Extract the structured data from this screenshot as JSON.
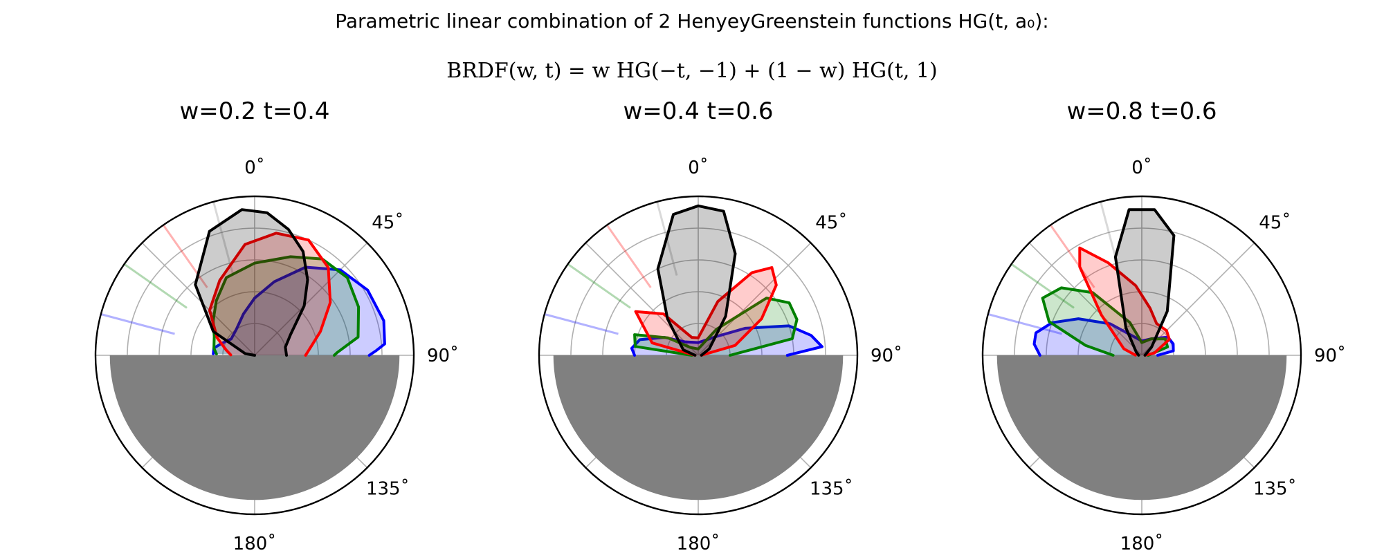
{
  "figure": {
    "title_line1": "Parametric linear combination of 2 HenyeyGreenstein functions HG(t, a₀):",
    "title_line2": "BRDF(w, t) = w HG(−t, −1) + (1 − w) HG(t, 1)"
  },
  "axes_common": {
    "theta_tick_labels": [
      "0˚",
      "45˚",
      "90˚",
      "135˚",
      "180˚"
    ],
    "theta_tick_angles_deg": [
      0,
      45,
      90,
      135,
      180
    ],
    "theta_gridline_angles_deg": [
      0,
      45,
      90,
      135,
      180,
      225,
      270,
      315
    ],
    "radial_rings": 5,
    "ground_color": "#808080",
    "series_colors": [
      "#0000ff",
      "#008000",
      "#ff0000",
      "#000000"
    ]
  },
  "chart_data": [
    {
      "type": "polar",
      "title": "w=0.2   t=0.4",
      "theta_zero": "top",
      "theta_direction": "clockwise",
      "rmax": 5,
      "grid": true,
      "incident_directions": [
        {
          "color": "#0000ff",
          "angle_deg": -75
        },
        {
          "color": "#008000",
          "angle_deg": -55
        },
        {
          "color": "#ff0000",
          "angle_deg": -35
        },
        {
          "color": "#808080",
          "angle_deg": -15
        }
      ],
      "series": [
        {
          "color": "#0000ff",
          "points": [
            [
              -88,
              1.3
            ],
            [
              -80,
              1.3
            ],
            [
              -70,
              1.1
            ],
            [
              -55,
              0.9
            ],
            [
              -35,
              1.0
            ],
            [
              -15,
              1.35
            ],
            [
              0,
              1.8
            ],
            [
              15,
              2.4
            ],
            [
              30,
              3.2
            ],
            [
              45,
              3.8
            ],
            [
              60,
              4.1
            ],
            [
              75,
              4.2
            ],
            [
              85,
              4.1
            ],
            [
              88,
              3.8
            ],
            [
              90,
              3.6
            ]
          ]
        },
        {
          "color": "#008000",
          "points": [
            [
              -88,
              1.2
            ],
            [
              -80,
              1.3
            ],
            [
              -65,
              1.4
            ],
            [
              -50,
              1.7
            ],
            [
              -35,
              2.1
            ],
            [
              -20,
              2.6
            ],
            [
              0,
              2.9
            ],
            [
              20,
              3.3
            ],
            [
              35,
              3.7
            ],
            [
              50,
              3.8
            ],
            [
              65,
              3.6
            ],
            [
              80,
              3.3
            ],
            [
              88,
              2.6
            ],
            [
              90,
              2.5
            ]
          ]
        },
        {
          "color": "#ff0000",
          "points": [
            [
              -89,
              0.75
            ],
            [
              -80,
              0.9
            ],
            [
              -65,
              1.3
            ],
            [
              -45,
              2.0
            ],
            [
              -25,
              2.6
            ],
            [
              -5,
              3.5
            ],
            [
              10,
              3.9
            ],
            [
              25,
              4.0
            ],
            [
              40,
              3.6
            ],
            [
              55,
              2.9
            ],
            [
              70,
              2.2
            ],
            [
              85,
              1.7
            ],
            [
              90,
              1.6
            ]
          ]
        },
        {
          "color": "#000000",
          "points": [
            [
              -89,
              0.0
            ],
            [
              -80,
              0.3
            ],
            [
              -60,
              1.5
            ],
            [
              -40,
              2.9
            ],
            [
              -20,
              4.15
            ],
            [
              -5,
              4.6
            ],
            [
              5,
              4.5
            ],
            [
              15,
              4.1
            ],
            [
              25,
              3.6
            ],
            [
              35,
              2.9
            ],
            [
              45,
              2.2
            ],
            [
              60,
              1.3
            ],
            [
              75,
              1.0
            ],
            [
              90,
              1.0
            ]
          ]
        }
      ]
    },
    {
      "type": "polar",
      "title": "w=0.4   t=0.6",
      "theta_zero": "top",
      "theta_direction": "clockwise",
      "rmax": 5,
      "grid": true,
      "incident_directions": [
        {
          "color": "#0000ff",
          "angle_deg": -75
        },
        {
          "color": "#008000",
          "angle_deg": -55
        },
        {
          "color": "#ff0000",
          "angle_deg": -35
        },
        {
          "color": "#808080",
          "angle_deg": -15
        }
      ],
      "series": [
        {
          "color": "#0000ff",
          "points": [
            [
              -90,
              2.0
            ],
            [
              -84,
              2.1
            ],
            [
              -75,
              1.9
            ],
            [
              -62,
              1.2
            ],
            [
              -45,
              0.6
            ],
            [
              0,
              0.4
            ],
            [
              45,
              0.85
            ],
            [
              60,
              1.7
            ],
            [
              72,
              3.0
            ],
            [
              80,
              3.6
            ],
            [
              86,
              3.9
            ],
            [
              90,
              2.8
            ]
          ]
        },
        {
          "color": "#008000",
          "points": [
            [
              -90,
              0.2
            ],
            [
              -82,
              2.0
            ],
            [
              -72,
              2.1
            ],
            [
              -60,
              1.1
            ],
            [
              -45,
              0.35
            ],
            [
              0,
              0.2
            ],
            [
              35,
              1.0
            ],
            [
              50,
              2.8
            ],
            [
              60,
              3.3
            ],
            [
              70,
              3.3
            ],
            [
              80,
              3.0
            ],
            [
              90,
              1.0
            ]
          ]
        },
        {
          "color": "#ff0000",
          "points": [
            [
              -89,
              0.1
            ],
            [
              -75,
              1.5
            ],
            [
              -55,
              2.4
            ],
            [
              -40,
              1.7
            ],
            [
              -20,
              0.6
            ],
            [
              0,
              0.55
            ],
            [
              20,
              1.8
            ],
            [
              33,
              3.1
            ],
            [
              40,
              3.6
            ],
            [
              48,
              3.3
            ],
            [
              60,
              2.3
            ],
            [
              75,
              1.2
            ],
            [
              89,
              0.1
            ]
          ]
        },
        {
          "color": "#000000",
          "points": [
            [
              -89,
              0.1
            ],
            [
              -70,
              0.5
            ],
            [
              -40,
              1.5
            ],
            [
              -25,
              3.0
            ],
            [
              -10,
              4.5
            ],
            [
              0,
              4.7
            ],
            [
              10,
              4.6
            ],
            [
              20,
              3.4
            ],
            [
              35,
              1.5
            ],
            [
              60,
              0.4
            ],
            [
              89,
              0.1
            ]
          ]
        }
      ]
    },
    {
      "type": "polar",
      "title": "w=0.8   t=0.6",
      "theta_zero": "top",
      "theta_direction": "clockwise",
      "rmax": 5,
      "grid": true,
      "incident_directions": [
        {
          "color": "#0000ff",
          "angle_deg": -75
        },
        {
          "color": "#008000",
          "angle_deg": -55
        },
        {
          "color": "#ff0000",
          "angle_deg": -35
        },
        {
          "color": "#808080",
          "angle_deg": -15
        }
      ],
      "series": [
        {
          "color": "#0000ff",
          "points": [
            [
              -90,
              3.2
            ],
            [
              -84,
              3.4
            ],
            [
              -78,
              3.4
            ],
            [
              -70,
              3.0
            ],
            [
              -60,
              2.3
            ],
            [
              -45,
              1.4
            ],
            [
              -20,
              0.6
            ],
            [
              0,
              0.45
            ],
            [
              30,
              0.6
            ],
            [
              55,
              1.0
            ],
            [
              70,
              1.05
            ],
            [
              82,
              1.0
            ],
            [
              90,
              0.5
            ]
          ]
        },
        {
          "color": "#008000",
          "points": [
            [
              -90,
              0.9
            ],
            [
              -80,
              1.8
            ],
            [
              -70,
              3.1
            ],
            [
              -60,
              3.6
            ],
            [
              -50,
              3.3
            ],
            [
              -38,
              2.5
            ],
            [
              -20,
              1.1
            ],
            [
              0,
              0.4
            ],
            [
              30,
              0.6
            ],
            [
              55,
              0.9
            ],
            [
              72,
              0.85
            ],
            [
              90,
              0.2
            ]
          ]
        },
        {
          "color": "#ff0000",
          "points": [
            [
              -89,
              0.2
            ],
            [
              -70,
              0.6
            ],
            [
              -45,
              1.8
            ],
            [
              -35,
              3.4
            ],
            [
              -30,
              3.9
            ],
            [
              -20,
              3.1
            ],
            [
              -5,
              2.2
            ],
            [
              10,
              1.5
            ],
            [
              25,
              1.1
            ],
            [
              45,
              1.1
            ],
            [
              60,
              1.0
            ],
            [
              80,
              0.4
            ],
            [
              89,
              0.1
            ]
          ]
        },
        {
          "color": "#000000",
          "points": [
            [
              -89,
              0.1
            ],
            [
              -60,
              0.2
            ],
            [
              -30,
              1.0
            ],
            [
              -15,
              3.2
            ],
            [
              -5,
              4.6
            ],
            [
              5,
              4.6
            ],
            [
              15,
              3.9
            ],
            [
              30,
              1.6
            ],
            [
              50,
              0.4
            ],
            [
              89,
              0.1
            ]
          ]
        }
      ]
    }
  ]
}
